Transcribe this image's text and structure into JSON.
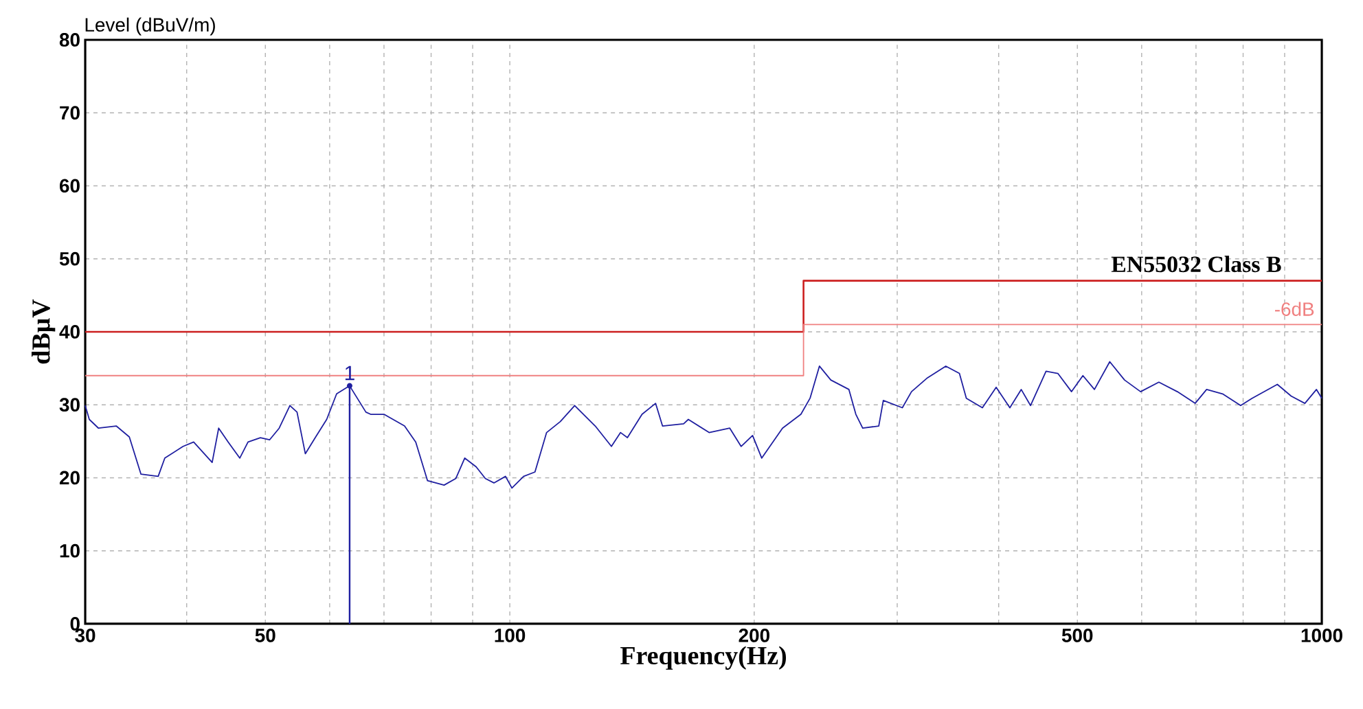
{
  "chart_data": {
    "type": "line",
    "title": "Level (dBuV/m)",
    "xlabel": "Frequency(Hz)",
    "ylabel": "dBµV",
    "log": "x",
    "grid": true,
    "xlim": [
      30,
      1000
    ],
    "ylim": [
      0,
      80
    ],
    "xticks": [
      30,
      {
        "value": 40,
        "label": null
      },
      50,
      {
        "value": 60,
        "label": null
      },
      {
        "value": 70,
        "label": null
      },
      {
        "value": 80,
        "label": null
      },
      {
        "value": 90,
        "label": null
      },
      100,
      200,
      {
        "value": 300,
        "label": null
      },
      {
        "value": 400,
        "label": null
      },
      500,
      {
        "value": 600,
        "label": null
      },
      {
        "value": 700,
        "label": null
      },
      {
        "value": 800,
        "label": null
      },
      {
        "value": 900,
        "label": null
      },
      1000
    ],
    "yticks": [
      0,
      10,
      20,
      30,
      40,
      50,
      60,
      70,
      80
    ],
    "series": [
      {
        "name": "EN55032 Class B",
        "color": "#cc1f1f",
        "x": [
          30,
          230,
          230,
          1000
        ],
        "values": [
          40,
          40,
          47,
          47
        ]
      },
      {
        "name": "-6dB",
        "color": "#f08080",
        "x": [
          30,
          230,
          230,
          1000
        ],
        "values": [
          34,
          34,
          41,
          41
        ]
      },
      {
        "color": "#1f1fa0",
        "x": [
          30,
          30.35,
          31.15,
          32.76,
          34.0,
          35.14,
          36.9,
          37.6,
          39.6,
          40.8,
          43.0,
          43.8,
          45.0,
          46.5,
          47.6,
          49.3,
          50.6,
          52.0,
          53.6,
          54.7,
          56.0,
          57.6,
          59.5,
          61.2,
          63.5,
          66.5,
          67.4,
          70.0,
          74.2,
          76.6,
          79.2,
          83.0,
          85.8,
          88.0,
          90.9,
          93.3,
          95.6,
          98.8,
          100.6,
          104.0,
          107.4,
          111.0,
          115.4,
          120.2,
          127.4,
          133.4,
          136.9,
          139.6,
          145.5,
          151.2,
          154.2,
          163.7,
          165.9,
          176.0,
          186.6,
          192.7,
          199.1,
          204.3,
          216.7,
          228.3,
          234.3,
          240.6,
          248.5,
          261.6,
          266.8,
          272.0,
          284.7,
          288.4,
          304.4,
          312.4,
          326.9,
          344.3,
          357.9,
          365.0,
          382.0,
          397.2,
          412.9,
          426.4,
          437.8,
          457.5,
          473.1,
          491.8,
          507.9,
          524.8,
          548.1,
          571.6,
          598.2,
          630.0,
          663.9,
          698.3,
          721.4,
          754.8,
          794.6,
          820.7,
          881.5,
          916.7,
          953.1,
          985.0,
          1000
        ],
        "values": [
          29.9,
          28.0,
          26.8,
          27.1,
          25.6,
          20.5,
          20.2,
          22.7,
          24.3,
          24.9,
          22.1,
          26.8,
          24.9,
          22.7,
          24.9,
          25.5,
          25.2,
          26.8,
          29.9,
          29.0,
          23.3,
          25.5,
          28.0,
          31.5,
          32.6,
          29.0,
          28.7,
          28.7,
          27.1,
          24.9,
          19.6,
          19.0,
          19.9,
          22.7,
          21.5,
          19.9,
          19.3,
          20.2,
          18.6,
          20.2,
          20.8,
          26.2,
          27.7,
          29.9,
          27.1,
          24.3,
          26.2,
          25.5,
          28.7,
          30.2,
          27.1,
          27.4,
          28.0,
          26.2,
          26.8,
          24.3,
          25.8,
          22.7,
          26.8,
          28.7,
          30.9,
          35.3,
          33.4,
          32.1,
          28.7,
          26.8,
          27.1,
          30.6,
          29.6,
          31.8,
          33.7,
          35.3,
          34.3,
          30.9,
          29.6,
          32.4,
          29.6,
          32.1,
          29.9,
          34.6,
          34.3,
          31.8,
          34.0,
          32.1,
          35.9,
          33.4,
          31.8,
          33.1,
          31.8,
          30.2,
          32.1,
          31.5,
          29.9,
          30.9,
          32.8,
          31.2,
          30.2,
          32.1,
          30.9
        ]
      }
    ],
    "annotations": [
      {
        "text": "1",
        "x": 63.5,
        "y": 32.6
      }
    ]
  }
}
